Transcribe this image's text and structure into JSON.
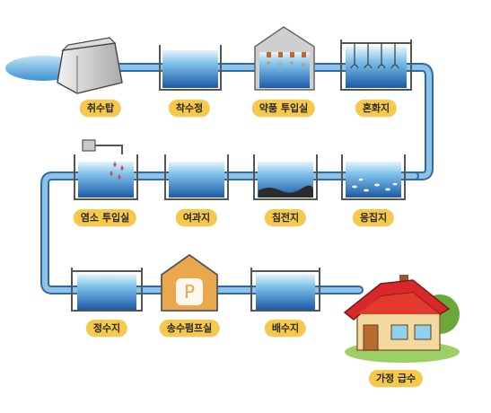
{
  "labels": {
    "intake_tower": "취수탑",
    "receiving_well": "착수정",
    "chemical_feed": "약품 투입실",
    "mixing_basin": "혼화지",
    "flocculation_basin": "응집지",
    "sedimentation_basin": "침전지",
    "filtration_basin": "여과지",
    "chlorination": "염소 투입실",
    "clear_well": "정수지",
    "pump_station": "송수펌프실",
    "distribution_reservoir": "배수지",
    "home_supply": "가정 급수"
  },
  "pump_symbol": "P",
  "colors": {
    "pipe": "#8ec3e6",
    "pipe_edge": "#2f6aa8",
    "water_top": "#d8eef9",
    "water_bottom": "#1f5fae",
    "label_bg": "#f6c94a",
    "pump_house": "#e9a84b",
    "roof": "#d8282b"
  }
}
